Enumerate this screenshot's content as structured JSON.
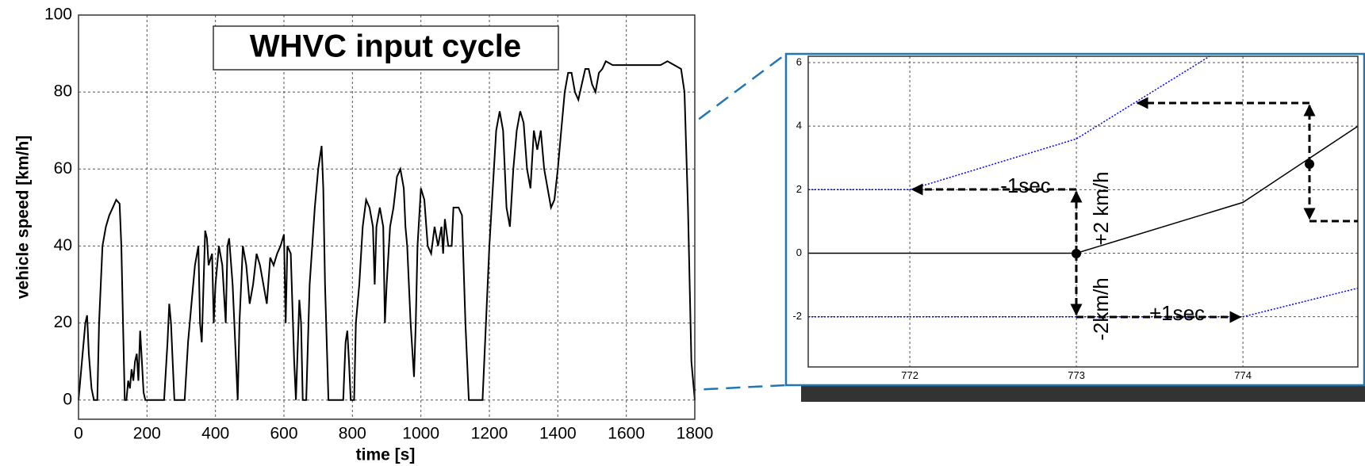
{
  "chart_data": [
    {
      "type": "line",
      "title": "WHVC input cycle",
      "xlabel": "time [s]",
      "ylabel": "vehicle speed [km/h]",
      "xlim": [
        0,
        1800
      ],
      "ylim": [
        -5,
        100
      ],
      "xticks": [
        0,
        200,
        400,
        600,
        800,
        1000,
        1200,
        1400,
        1600,
        1800
      ],
      "yticks": [
        0,
        20,
        40,
        60,
        80,
        100
      ],
      "grid": true,
      "series": [
        {
          "color": "#000000",
          "x": [
            0,
            10,
            20,
            25,
            30,
            38,
            45,
            55,
            60,
            70,
            80,
            90,
            100,
            110,
            120,
            125,
            130,
            135,
            140,
            145,
            150,
            155,
            160,
            165,
            170,
            175,
            180,
            185,
            190,
            195,
            250,
            260,
            265,
            270,
            275,
            280,
            310,
            320,
            330,
            340,
            350,
            355,
            360,
            365,
            370,
            375,
            380,
            390,
            395,
            400,
            410,
            420,
            430,
            435,
            440,
            450,
            460,
            465,
            470,
            480,
            490,
            500,
            510,
            520,
            530,
            540,
            550,
            560,
            570,
            580,
            590,
            600,
            605,
            610,
            620,
            630,
            635,
            645,
            650,
            655,
            665,
            675,
            690,
            700,
            710,
            715,
            720,
            730,
            760,
            773,
            774,
            775,
            780,
            785,
            790,
            795,
            805,
            810,
            820,
            830,
            840,
            850,
            860,
            865,
            870,
            880,
            890,
            895,
            900,
            910,
            920,
            930,
            940,
            950,
            955,
            960,
            970,
            980,
            985,
            990,
            1000,
            1010,
            1020,
            1030,
            1040,
            1050,
            1060,
            1065,
            1070,
            1080,
            1090,
            1095,
            1110,
            1120,
            1130,
            1140,
            1180,
            1190,
            1200,
            1210,
            1220,
            1230,
            1240,
            1250,
            1260,
            1270,
            1280,
            1290,
            1300,
            1310,
            1320,
            1330,
            1340,
            1350,
            1360,
            1370,
            1380,
            1390,
            1400,
            1410,
            1420,
            1430,
            1440,
            1450,
            1460,
            1470,
            1480,
            1490,
            1500,
            1510,
            1520,
            1530,
            1540,
            1560,
            1600,
            1650,
            1700,
            1720,
            1740,
            1760,
            1770,
            1780,
            1790,
            1800
          ],
          "values": [
            0,
            10,
            20,
            22,
            12,
            3,
            0,
            0,
            20,
            40,
            45,
            48,
            50,
            52,
            51,
            40,
            20,
            0,
            0,
            5,
            3,
            8,
            5,
            10,
            12,
            5,
            18,
            10,
            2,
            0,
            0,
            15,
            25,
            20,
            10,
            0,
            0,
            15,
            25,
            35,
            40,
            20,
            15,
            30,
            44,
            42,
            35,
            38,
            20,
            30,
            40,
            35,
            20,
            40,
            42,
            30,
            10,
            0,
            20,
            40,
            35,
            25,
            30,
            38,
            35,
            30,
            25,
            37,
            35,
            38,
            40,
            43,
            20,
            40,
            38,
            10,
            0,
            26,
            20,
            0,
            0,
            30,
            50,
            60,
            66,
            55,
            30,
            0,
            0,
            0,
            1.6,
            4,
            15,
            18,
            10,
            0,
            0,
            20,
            30,
            45,
            52,
            50,
            45,
            30,
            45,
            50,
            45,
            20,
            30,
            45,
            50,
            58,
            60,
            55,
            45,
            40,
            20,
            6,
            20,
            40,
            55,
            52,
            40,
            38,
            45,
            40,
            45,
            38,
            47,
            40,
            40,
            50,
            50,
            48,
            20,
            0,
            0,
            20,
            40,
            55,
            70,
            75,
            70,
            50,
            45,
            60,
            70,
            75,
            72,
            60,
            55,
            70,
            65,
            70,
            60,
            55,
            50,
            52,
            60,
            70,
            80,
            85,
            85,
            80,
            78,
            82,
            86,
            86,
            82,
            80,
            85,
            86,
            88,
            87,
            87,
            87,
            87,
            88,
            87,
            86,
            80,
            50,
            10,
            0
          ]
        }
      ]
    },
    {
      "type": "line",
      "xlim": [
        771.39,
        774.69
      ],
      "ylim": [
        -3.58,
        6.2
      ],
      "xticks": [
        772,
        773,
        774
      ],
      "yticks": [
        -2,
        0,
        2,
        4,
        6
      ],
      "grid": true,
      "annotations": [
        "-1sec",
        "+1sec",
        "+2 km/h",
        "-2km/h"
      ],
      "series": [
        {
          "color": "#000000",
          "linestyle": "solid",
          "x": [
            771.39,
            773,
            774,
            774.69
          ],
          "values": [
            0,
            0,
            1.6,
            4.0
          ]
        },
        {
          "color": "#0000ff",
          "linestyle": "dotted",
          "x": [
            771.39,
            772,
            773,
            773.8
          ],
          "values": [
            2,
            2,
            3.6,
            6.2
          ]
        },
        {
          "color": "#0000ff",
          "linestyle": "dotted",
          "x": [
            771.39,
            774,
            774.69
          ],
          "values": [
            -2,
            -2,
            -1.1
          ]
        }
      ]
    }
  ]
}
